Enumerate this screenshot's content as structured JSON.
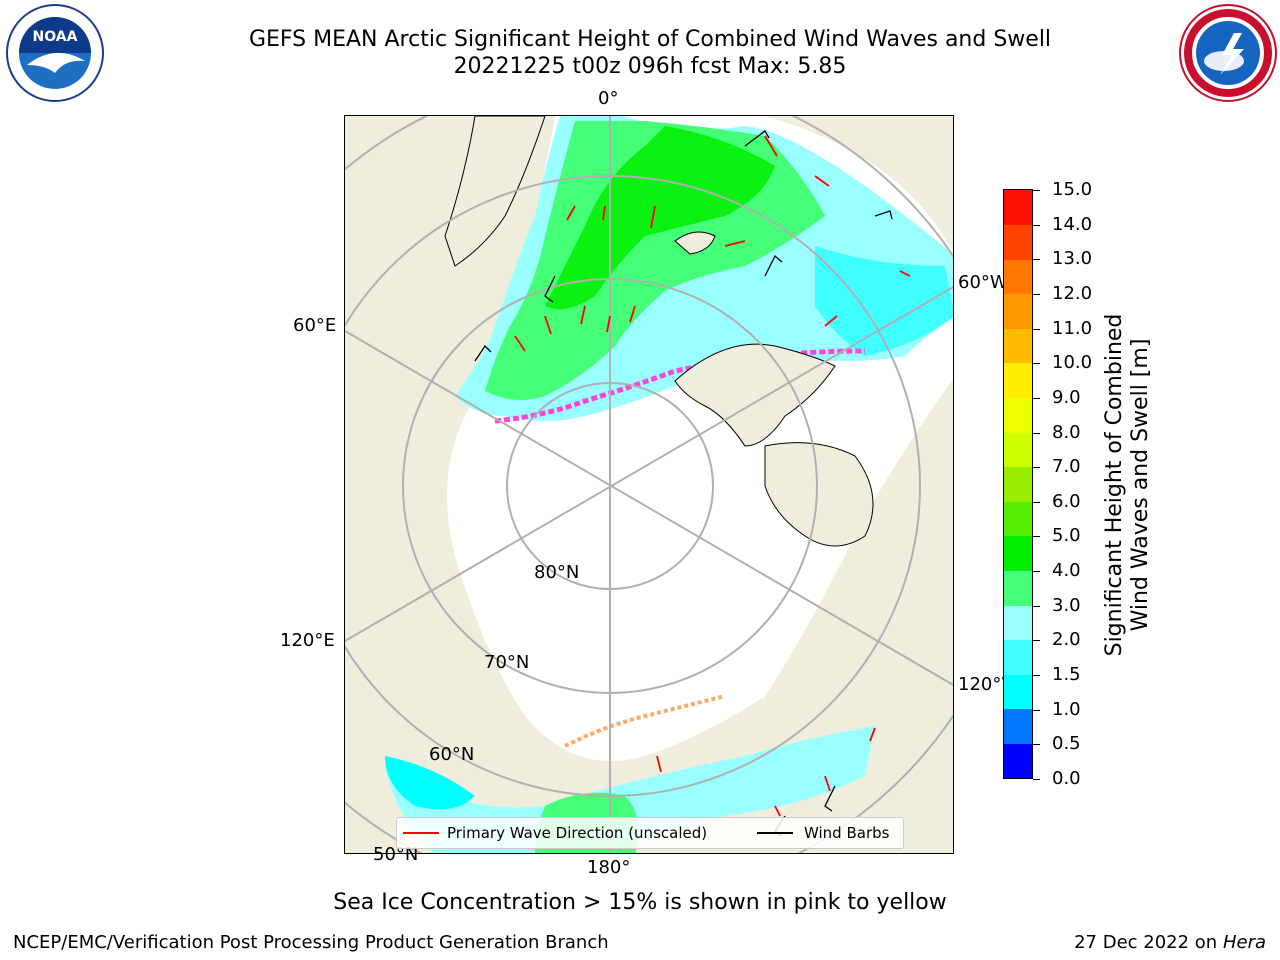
{
  "title_line1": "GEFS MEAN Arctic Significant Height of Combined Wind Waves and Swell",
  "title_line2": "20221225 t00z 096h fcst   Max: 5.85",
  "logos": {
    "left": "NOAA",
    "right": "NATIONAL WEATHER SERVICE"
  },
  "map": {
    "labels": {
      "lon_0": "0°",
      "lon_60E": "60°E",
      "lon_60W": "60°W",
      "lon_120E": "120°E",
      "lon_120W": "120°W",
      "lon_180": "180°",
      "lat_80N": "80°N",
      "lat_70N": "70°N",
      "lat_60N": "60°N",
      "lat_50N": "50°N"
    },
    "colors": {
      "land": "#efeedd",
      "ocean_ice": "#ffffff",
      "graticule": "#b0b0b0",
      "wave_arrow": "#ff0000",
      "wind_barb": "#000000"
    }
  },
  "legend": {
    "primary_wave": "Primary Wave Direction (unscaled)",
    "wind_barbs": "Wind Barbs"
  },
  "colorbar": {
    "title_line1": "Significant Height of Combined",
    "title_line2": "Wind Waves and Swell [m]",
    "ticks": [
      "0.0",
      "0.5",
      "1.0",
      "1.5",
      "2.0",
      "3.0",
      "4.0",
      "5.0",
      "6.0",
      "7.0",
      "8.0",
      "9.0",
      "10.0",
      "11.0",
      "12.0",
      "13.0",
      "14.0",
      "15.0"
    ],
    "colors": [
      "#0000ff",
      "#0077ff",
      "#00ffff",
      "#40ffff",
      "#99ffff",
      "#44ff77",
      "#00ee00",
      "#55ee00",
      "#99ee00",
      "#ccff00",
      "#eeff00",
      "#ffee00",
      "#ffbb00",
      "#ff9900",
      "#ff7700",
      "#ff4400",
      "#ff1100"
    ]
  },
  "caption": "Sea Ice Concentration > 15% is shown in pink to yellow",
  "footer_left": "NCEP/EMC/Verification Post Processing Product Generation Branch",
  "footer_right_date": "27 Dec 2022 on",
  "footer_right_machine": "Hera"
}
